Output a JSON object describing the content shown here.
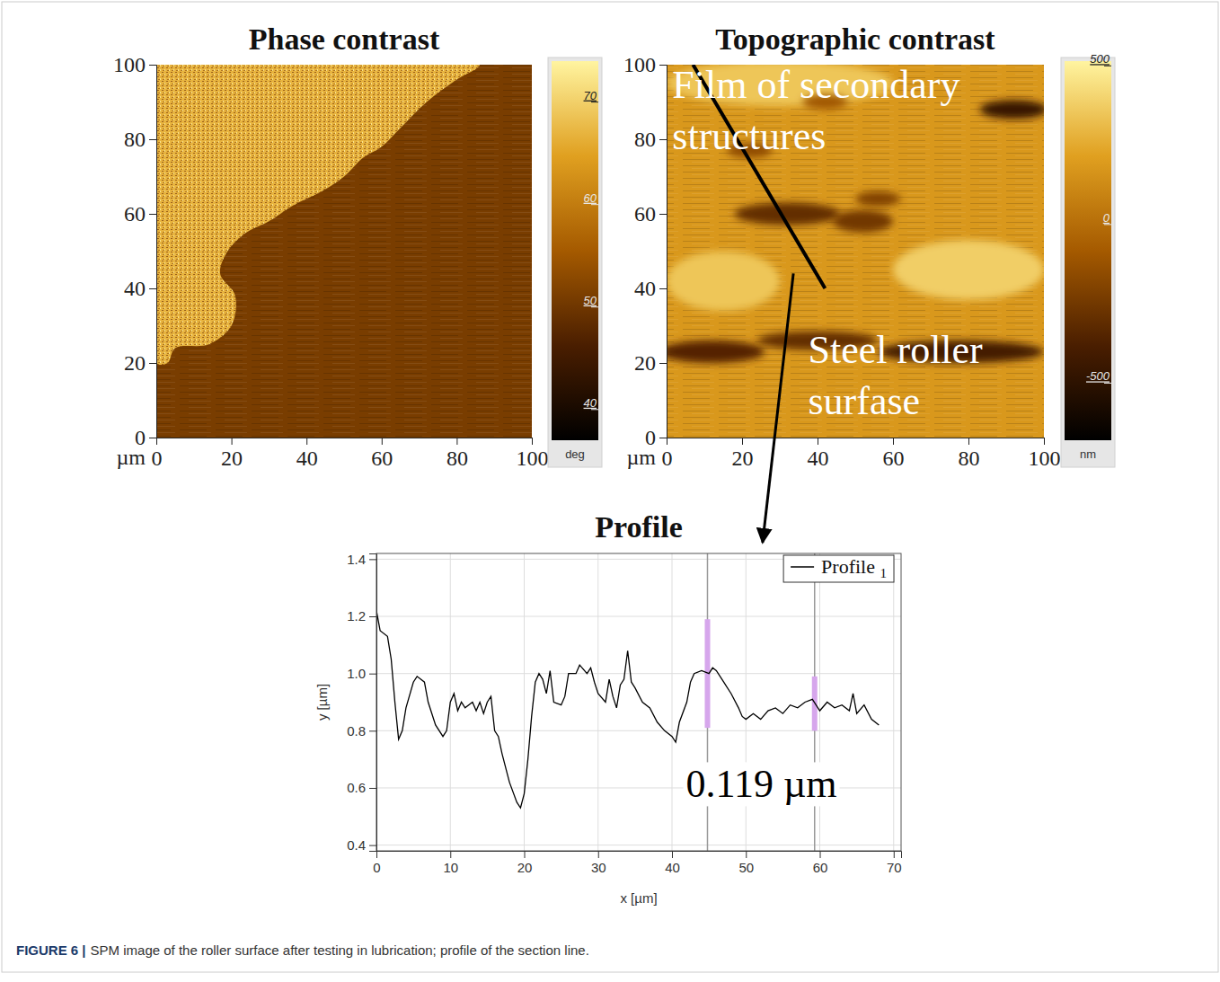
{
  "chart_data": [
    {
      "type": "image",
      "title": "Phase contrast",
      "xlabel": "µm",
      "xlim": [
        0,
        100
      ],
      "ylim": [
        0,
        100
      ],
      "xticks": [
        0,
        20,
        40,
        60,
        80,
        100
      ],
      "yticks": [
        0,
        20,
        40,
        60,
        80,
        100
      ],
      "background": 51,
      "regions": [
        {
          "value": 67,
          "points": [
            [
              0,
              20
            ],
            [
              3,
              20
            ],
            [
              5,
              24
            ],
            [
              14,
              25
            ],
            [
              20,
              30
            ],
            [
              21,
              38
            ],
            [
              17,
              44
            ],
            [
              19,
              50
            ],
            [
              24,
              55
            ],
            [
              30,
              58
            ],
            [
              36,
              62
            ],
            [
              44,
              66
            ],
            [
              50,
              70
            ],
            [
              55,
              75
            ],
            [
              60,
              78
            ],
            [
              65,
              83
            ],
            [
              72,
              90
            ],
            [
              80,
              96
            ],
            [
              86,
              100
            ],
            [
              0,
              100
            ]
          ]
        }
      ],
      "colorbar": {
        "range": [
          37,
          74
        ],
        "ticks": [
          40,
          50,
          60,
          70
        ],
        "label": "deg"
      }
    },
    {
      "type": "image",
      "title": "Topographic contrast",
      "xlabel": "µm",
      "xlim": [
        0,
        100
      ],
      "ylim": [
        0,
        100
      ],
      "xticks": [
        0,
        20,
        40,
        60,
        80,
        100
      ],
      "yticks": [
        0,
        20,
        40,
        60,
        80,
        100
      ],
      "background": 180,
      "regions": [
        {
          "value": 350,
          "cx": 30,
          "cy": 95,
          "rx": 30,
          "ry": 6
        },
        {
          "value": 350,
          "cx": 15,
          "cy": 42,
          "rx": 15,
          "ry": 8
        },
        {
          "value": 380,
          "cx": 80,
          "cy": 45,
          "rx": 20,
          "ry": 8
        },
        {
          "value": -450,
          "cx": 92,
          "cy": 88,
          "rx": 9,
          "ry": 2.5
        },
        {
          "value": -300,
          "cx": 32,
          "cy": 60,
          "rx": 14,
          "ry": 3
        },
        {
          "value": -250,
          "cx": 52,
          "cy": 58,
          "rx": 8,
          "ry": 3
        },
        {
          "value": -200,
          "cx": 56,
          "cy": 64,
          "rx": 6,
          "ry": 2
        },
        {
          "value": -350,
          "cx": 12,
          "cy": 23,
          "rx": 14,
          "ry": 3
        },
        {
          "value": -300,
          "cx": 40,
          "cy": 26,
          "rx": 16,
          "ry": 2.5
        },
        {
          "value": -400,
          "cx": 78,
          "cy": 23,
          "rx": 22,
          "ry": 3
        },
        {
          "value": -150,
          "cx": 22,
          "cy": 77,
          "rx": 6,
          "ry": 2
        },
        {
          "value": -100,
          "cx": 42,
          "cy": 90,
          "rx": 6,
          "ry": 2
        }
      ],
      "colorbar": {
        "range": [
          -680,
          515
        ],
        "ticks": [
          -500,
          0,
          500
        ],
        "label": "nm"
      },
      "section_line": {
        "x": [
          7,
          42
        ],
        "y": [
          100,
          40
        ]
      },
      "annotations": [
        {
          "lines": [
            "Film of secondary",
            "structures"
          ]
        },
        {
          "lines": [
            "Steel roller",
            "surfase"
          ]
        }
      ]
    },
    {
      "type": "line",
      "title": "Profile",
      "xlabel": "x [µm]",
      "ylabel": "y [µm]",
      "xlim": [
        0,
        71
      ],
      "ylim": [
        0.38,
        1.42
      ],
      "xticks": [
        0,
        10,
        20,
        30,
        40,
        50,
        60,
        70
      ],
      "yticks": [
        0.4,
        0.6,
        0.8,
        {
          "value": 1,
          "label": "1.0"
        },
        1.2,
        1.4
      ],
      "grid": true,
      "legend": "top-right",
      "x": [
        0,
        0.5,
        1.5,
        2,
        2.5,
        3,
        3.5,
        4,
        5,
        5.5,
        6.5,
        7,
        8,
        9,
        9.5,
        10,
        10.5,
        11,
        11.5,
        12,
        13,
        13.5,
        14,
        14.5,
        15,
        15.5,
        16,
        16.5,
        17,
        18,
        19,
        19.5,
        20,
        20.5,
        21,
        21.5,
        22,
        22.5,
        23,
        23.5,
        24,
        25,
        25.5,
        26,
        27,
        27.5,
        28.5,
        29,
        29.5,
        30,
        31,
        31.5,
        32,
        32.5,
        33,
        33.5,
        34,
        34.5,
        35,
        36,
        37,
        38,
        39,
        40,
        40.5,
        41,
        42,
        42.5,
        43,
        44,
        45,
        45.5,
        46,
        47,
        48,
        49,
        49.5,
        50,
        51,
        52,
        53,
        54,
        55,
        56,
        57,
        58,
        59,
        60,
        61,
        62,
        63,
        64,
        64.5,
        65,
        66,
        67,
        68
      ],
      "series": [
        {
          "name": "Profile 1",
          "color": "#000000",
          "values": [
            1.22,
            1.15,
            1.13,
            1.05,
            0.9,
            0.77,
            0.8,
            0.88,
            0.97,
            0.99,
            0.97,
            0.9,
            0.82,
            0.78,
            0.8,
            0.9,
            0.93,
            0.87,
            0.9,
            0.88,
            0.9,
            0.87,
            0.9,
            0.86,
            0.9,
            0.92,
            0.8,
            0.78,
            0.72,
            0.62,
            0.55,
            0.53,
            0.58,
            0.7,
            0.85,
            0.97,
            1.0,
            0.98,
            0.93,
            1.01,
            0.9,
            0.89,
            0.92,
            1.0,
            1.0,
            1.03,
            1.0,
            1.02,
            0.97,
            0.93,
            0.9,
            0.98,
            0.92,
            0.88,
            0.96,
            0.98,
            1.08,
            0.97,
            0.95,
            0.9,
            0.88,
            0.83,
            0.8,
            0.78,
            0.76,
            0.83,
            0.9,
            0.97,
            1.0,
            1.01,
            1.0,
            1.02,
            1.01,
            0.97,
            0.93,
            0.88,
            0.85,
            0.84,
            0.86,
            0.84,
            0.87,
            0.88,
            0.86,
            0.89,
            0.88,
            0.9,
            0.91,
            0.87,
            0.9,
            0.88,
            0.89,
            0.87,
            0.93,
            0.86,
            0.89,
            0.84,
            0.82
          ]
        }
      ],
      "cursors": [
        {
          "x": 44.8,
          "y": [
            0.81,
            1.19
          ]
        },
        {
          "x": 59.3,
          "y": [
            0.8,
            0.99
          ]
        }
      ],
      "annotations": [
        "0.119 µm"
      ]
    }
  ],
  "caption": {
    "label": "FIGURE 6 |",
    "text": "SPM image of the roller surface after testing in lubrication; profile of the section line."
  }
}
